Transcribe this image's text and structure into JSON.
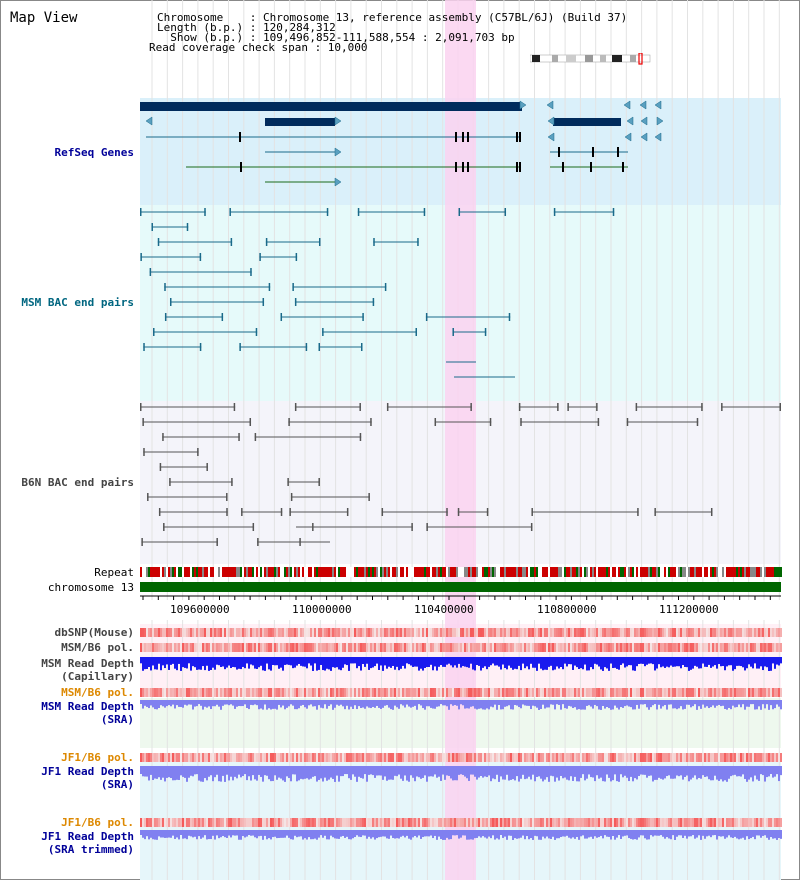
{
  "title": "Map View",
  "info": {
    "chromosome_label": "Chromosome    : Chromosome 13, reference assembly (C57BL/6J) (Build 37)",
    "length_label": "Length (b.p.) : 120,284,312",
    "show_label": "  Show (b.p.) : 109,496,852-111,588,554 : 2,091,703 bp",
    "coverage_label": "Read coverage check span : 10,000"
  },
  "tracks": {
    "refseq": "RefSeq Genes",
    "msm_bac": "MSM BAC end pairs",
    "b6n_bac": "B6N BAC end pairs",
    "repeat": "Repeat",
    "chromosome": "chromosome 13",
    "dbsnp": "dbSNP(Mouse)",
    "msm_b6_pol": "MSM/B6 pol.",
    "msm_depth_cap_1": "MSM Read Depth",
    "msm_depth_cap_2": "(Capillary)",
    "msm_b6_pol_sra": "MSM/B6 pol.",
    "msm_depth_sra_1": "MSM Read Depth",
    "msm_depth_sra_2": "(SRA)",
    "jf1_b6_pol": "JF1/B6 pol.",
    "jf1_depth_1": "JF1 Read Depth",
    "jf1_depth_2": "(SRA)",
    "jf1_b6_pol_trim": "JF1/B6 pol.",
    "jf1_depth_trim_1": "JF1 Read Depth",
    "jf1_depth_trim_2": "(SRA trimmed)"
  },
  "axis_ticks": [
    "109600000",
    "110000000",
    "110400000",
    "110800000",
    "111200000"
  ],
  "colors": {
    "refseq_bg": "#daf0fa",
    "msm_bg": "#e6fafa",
    "b6n_bg": "#f4f4fa",
    "highlight": "#fad2f0",
    "gene": "#002b5c",
    "chrom": "#006600",
    "depth_blue": "#1a1aee",
    "depth_light": "#8080f0"
  }
}
